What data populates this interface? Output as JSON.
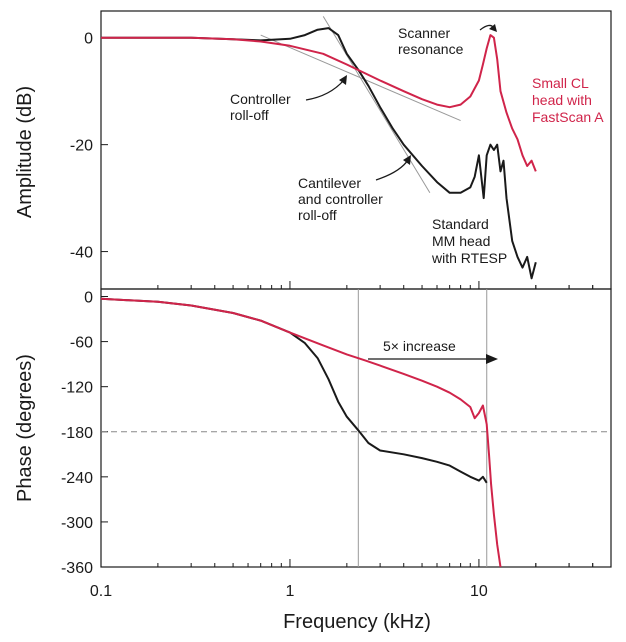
{
  "chart_data": [
    {
      "type": "line",
      "id": "amplitude",
      "title": "",
      "xlabel": "",
      "ylabel": "Amplitude (dB)",
      "xscale": "log",
      "xlim": [
        0.1,
        50
      ],
      "ylim": [
        -47,
        5
      ],
      "yticks": [
        0,
        -20,
        -40
      ],
      "grid": false,
      "series": [
        {
          "name": "Standard MM head with RTESP",
          "color": "#1a1a1a",
          "x": [
            0.1,
            0.2,
            0.3,
            0.5,
            0.7,
            1.0,
            1.2,
            1.4,
            1.6,
            1.8,
            2.0,
            2.3,
            2.6,
            3.0,
            3.5,
            4.0,
            5.0,
            6.0,
            7.0,
            8.0,
            9.0,
            9.5,
            10.0,
            10.3,
            10.6,
            11.0,
            11.5,
            12.0,
            12.5,
            13.0,
            13.5,
            14.0,
            15.0,
            16.0,
            17.0,
            18.0,
            19.0,
            20.0
          ],
          "y": [
            0,
            0,
            0,
            -0.3,
            -0.5,
            -0.2,
            0.5,
            1.5,
            1.8,
            0.5,
            -3,
            -6,
            -9,
            -13,
            -17,
            -20,
            -24,
            -27,
            -29,
            -29,
            -28,
            -26,
            -22,
            -26,
            -30,
            -22,
            -20,
            -21,
            -20,
            -25,
            -23,
            -30,
            -38,
            -41,
            -43,
            -41,
            -45,
            -42
          ]
        },
        {
          "name": "Small CL head with FastScan A",
          "color": "#d0244a",
          "x": [
            0.1,
            0.2,
            0.3,
            0.5,
            0.7,
            1.0,
            1.5,
            2.0,
            3.0,
            4.0,
            5.0,
            6.0,
            7.0,
            8.0,
            9.0,
            10.0,
            10.5,
            11.0,
            11.5,
            12.0,
            12.5,
            13.0,
            14.0,
            15.0,
            16.0,
            17.0,
            18.0,
            19.0,
            20.0
          ],
          "y": [
            0,
            0,
            0,
            -0.3,
            -0.7,
            -1.5,
            -3,
            -5,
            -8,
            -10,
            -11.5,
            -12.5,
            -13,
            -12.5,
            -11,
            -8,
            -5,
            -2,
            0.5,
            0,
            -4,
            -10,
            -14,
            -17,
            -19,
            -22,
            -24,
            -23,
            -25
          ]
        }
      ],
      "annotations": {
        "scanner": [
          "Scanner",
          "resonance"
        ],
        "controller": [
          "Controller",
          "roll-off"
        ],
        "cantilever": [
          "Cantilever",
          "and controller",
          "roll-off"
        ],
        "standard": [
          "Standard",
          "MM head",
          "with RTESP"
        ],
        "small": [
          "Small CL",
          "head with",
          "FastScan A"
        ]
      }
    },
    {
      "type": "line",
      "id": "phase",
      "title": "",
      "xlabel": "Frequency (kHz)",
      "ylabel": "Phase (degrees)",
      "xscale": "log",
      "xlim": [
        0.1,
        50
      ],
      "xticks": [
        0.1,
        1,
        10
      ],
      "ylim": [
        -360,
        10
      ],
      "yticks": [
        0,
        -60,
        -120,
        -180,
        -240,
        -300,
        -360
      ],
      "grid": false,
      "reference_line": -180,
      "vlines": [
        2.3,
        11
      ],
      "series": [
        {
          "name": "Standard MM head with RTESP",
          "color": "#1a1a1a",
          "x": [
            0.1,
            0.2,
            0.3,
            0.5,
            0.7,
            1.0,
            1.2,
            1.4,
            1.6,
            1.8,
            2.0,
            2.3,
            2.6,
            3.0,
            4.0,
            5.0,
            6.0,
            7.0,
            8.0,
            9.0,
            10.0,
            10.5,
            11.0
          ],
          "y": [
            -3,
            -7,
            -12,
            -22,
            -32,
            -48,
            -62,
            -82,
            -110,
            -140,
            -160,
            -178,
            -195,
            -205,
            -210,
            -215,
            -220,
            -225,
            -233,
            -240,
            -245,
            -240,
            -248
          ]
        },
        {
          "name": "Small CL head with FastScan A",
          "color": "#d0244a",
          "x": [
            0.1,
            0.2,
            0.3,
            0.5,
            0.7,
            1.0,
            1.5,
            2.0,
            2.5,
            3.0,
            4.0,
            5.0,
            6.0,
            7.0,
            8.0,
            9.0,
            9.5,
            10.0,
            10.5,
            11.0,
            11.3,
            11.6,
            12.0,
            12.5,
            13.0
          ],
          "y": [
            -3,
            -7,
            -12,
            -22,
            -32,
            -48,
            -65,
            -77,
            -85,
            -92,
            -103,
            -112,
            -120,
            -128,
            -137,
            -147,
            -162,
            -155,
            -145,
            -170,
            -210,
            -250,
            -290,
            -330,
            -360
          ]
        }
      ],
      "annotations": {
        "increase": "5× increase"
      }
    }
  ]
}
